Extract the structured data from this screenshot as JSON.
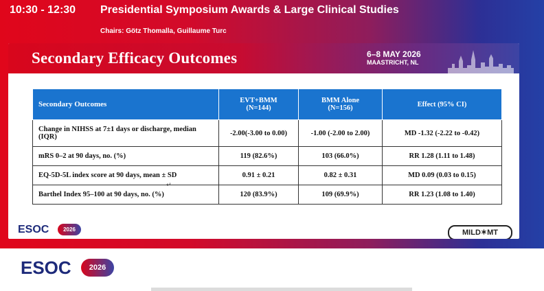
{
  "session": {
    "time": "10:30 - 12:30",
    "title": "Presidential Symposium Awards & Large Clinical Studies",
    "chairs": "Chairs: Götz Thomalla, Guillaume Turc"
  },
  "slide": {
    "title": "Secondary Efficacy Outcomes",
    "event_date": "6–8 MAY 2026",
    "event_city": "MAASTRICHT, NL",
    "logo_text": "ESOC",
    "logo_year": "2026",
    "trial_logo": "MILD✶MT"
  },
  "table": {
    "headers": [
      {
        "line1": "Secondary Outcomes",
        "line2": ""
      },
      {
        "line1": "EVT+BMM",
        "line2": "(N=144)"
      },
      {
        "line1": "BMM Alone",
        "line2": "(N=156)"
      },
      {
        "line1": "Effect (95% CI)",
        "line2": ""
      }
    ],
    "rows": [
      {
        "outcome": "Change in NIHSS at 7±1 days or discharge, median (IQR)",
        "evt": "-2.00(-3.00 to 0.00)",
        "bmm": "-1.00 (-2.00 to 2.00)",
        "effect": "MD -1.32 (-2.22 to -0.42)"
      },
      {
        "outcome": "mRS 0–2 at 90 days, no. (%)",
        "evt": "119 (82.6%)",
        "bmm": "103 (66.0%)",
        "effect": "RR 1.28 (1.11 to 1.48)"
      },
      {
        "outcome": "EQ-5D-5L index score at 90 days, mean ± SD",
        "evt": "0.91 ± 0.21",
        "bmm": "0.82 ± 0.31",
        "effect": "MD 0.09 (0.03 to 0.15)"
      },
      {
        "outcome": "Barthel Index 95–100 at 90 days, no. (%)",
        "evt": "120 (83.9%)",
        "bmm": "109 (69.9%)",
        "effect": "RR 1.23 (1.08 to 1.40)"
      }
    ]
  },
  "footer": {
    "logo_text": "ESOC",
    "logo_year": "2026"
  },
  "colors": {
    "brand_red": "#d8061c",
    "brand_blue": "#3c44a4",
    "table_header": "#1a74cf"
  }
}
